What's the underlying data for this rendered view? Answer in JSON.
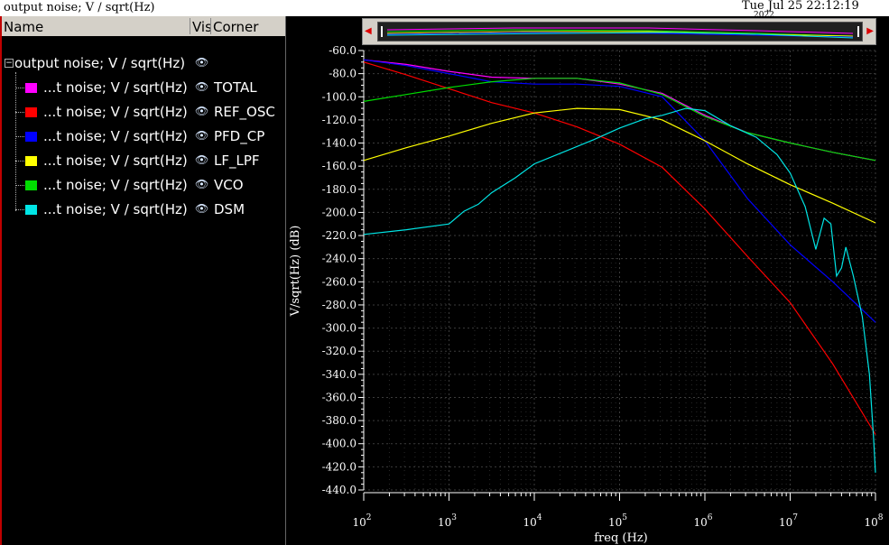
{
  "window": {
    "title": "output noise; V / sqrt(Hz)",
    "datetime": "Tue Jul 25 22:12:19",
    "year": "2022"
  },
  "legend_panel": {
    "columns": [
      "Name",
      "Vis",
      "Corner"
    ],
    "group": "output noise; V / sqrt(Hz)",
    "items": [
      {
        "label": "...t noise; V / sqrt(Hz)",
        "corner": "TOTAL",
        "color": "#ff00ff"
      },
      {
        "label": "...t noise; V / sqrt(Hz)",
        "corner": "REF_OSC",
        "color": "#ff0000"
      },
      {
        "label": "...t noise; V / sqrt(Hz)",
        "corner": "PFD_CP",
        "color": "#0000ff"
      },
      {
        "label": "...t noise; V / sqrt(Hz)",
        "corner": "LF_LPF",
        "color": "#ffff00"
      },
      {
        "label": "...t noise; V / sqrt(Hz)",
        "corner": "VCO",
        "color": "#00dd00"
      },
      {
        "label": "...t noise; V / sqrt(Hz)",
        "corner": "DSM",
        "color": "#00e5e5"
      }
    ]
  },
  "chart_data": {
    "type": "line",
    "xlabel": "freq (Hz)",
    "ylabel": "V/sqrt(Hz) (dB)",
    "xscale": "log",
    "xlim": [
      100,
      100000000
    ],
    "ylim": [
      -440,
      -60
    ],
    "yticks": [
      -60,
      -80,
      -100,
      -120,
      -140,
      -160,
      -180,
      -200,
      -220,
      -240,
      -260,
      -280,
      -300,
      -320,
      -340,
      -360,
      -380,
      -400,
      -420,
      -440
    ],
    "ytick_labels": [
      "-60.0",
      "-80.0",
      "-100.0",
      "-120.0",
      "-140.0",
      "-160.0",
      "-180.0",
      "-200.0",
      "-220.0",
      "-240.0",
      "-260.0",
      "-280.0",
      "-300.0",
      "-320.0",
      "-340.0",
      "-360.0",
      "-380.0",
      "-400.0",
      "-420.0",
      "-440.0"
    ],
    "xticks": [
      100,
      1000,
      10000,
      100000,
      1000000,
      10000000,
      100000000
    ],
    "xtick_labels": [
      [
        "10",
        "2"
      ],
      [
        "10",
        "3"
      ],
      [
        "10",
        "4"
      ],
      [
        "10",
        "5"
      ],
      [
        "10",
        "6"
      ],
      [
        "10",
        "7"
      ],
      [
        "10",
        "8"
      ]
    ],
    "grid": true,
    "series": [
      {
        "name": "TOTAL",
        "color": "#ff00ff",
        "x": [
          100,
          316,
          1000,
          3160,
          10000,
          31600,
          100000,
          316000,
          1000000,
          3160000,
          10000000,
          31600000,
          100000000
        ],
        "y": [
          -68,
          -72,
          -78,
          -83,
          -84,
          -84,
          -89,
          -97,
          -116,
          -131,
          -140,
          -148,
          -155
        ]
      },
      {
        "name": "REF_OSC",
        "color": "#ff0000",
        "x": [
          100,
          316,
          1000,
          3160,
          10000,
          31600,
          100000,
          316000,
          1000000,
          3160000,
          10000000,
          31600000,
          100000000
        ],
        "y": [
          -70,
          -81,
          -93,
          -105,
          -114,
          -126,
          -141,
          -161,
          -197,
          -238,
          -278,
          -331,
          -392
        ]
      },
      {
        "name": "PFD_CP",
        "color": "#0000ff",
        "x": [
          100,
          316,
          1000,
          3160,
          10000,
          31600,
          100000,
          316000,
          1000000,
          3160000,
          10000000,
          31600000,
          100000000
        ],
        "y": [
          -68,
          -73,
          -80,
          -87,
          -89,
          -89,
          -91,
          -100,
          -138,
          -188,
          -228,
          -260,
          -295
        ]
      },
      {
        "name": "LF_LPF",
        "color": "#ffff00",
        "x": [
          100,
          316,
          1000,
          3160,
          10000,
          31600,
          100000,
          316000,
          1000000,
          3160000,
          10000000,
          31600000,
          100000000
        ],
        "y": [
          -155,
          -144,
          -134,
          -123,
          -114,
          -110,
          -111,
          -120,
          -138,
          -158,
          -176,
          -192,
          -209
        ]
      },
      {
        "name": "VCO",
        "color": "#00dd00",
        "x": [
          100,
          316,
          1000,
          3160,
          10000,
          31600,
          100000,
          316000,
          1000000,
          3160000,
          10000000,
          31600000,
          100000000
        ],
        "y": [
          -104,
          -98,
          -92,
          -87,
          -84,
          -84,
          -88,
          -98,
          -117,
          -131,
          -140,
          -148,
          -155
        ]
      },
      {
        "name": "DSM",
        "color": "#00e5e5",
        "x": [
          100,
          316,
          1000,
          1500,
          2200,
          3160,
          6000,
          10000,
          20000,
          50000,
          100000,
          200000,
          316000,
          600000,
          1000000,
          2000000,
          4000000,
          7000000,
          10000000,
          15000000,
          20000000,
          25000000,
          30000000,
          35000000,
          40000000,
          45000000,
          55000000,
          70000000,
          85000000,
          95000000,
          100000000
        ],
        "y": [
          -219,
          -215,
          -210,
          -199,
          -193,
          -183,
          -170,
          -158,
          -149,
          -137,
          -127,
          -119,
          -116,
          -110,
          -112,
          -125,
          -135,
          -150,
          -166,
          -195,
          -232,
          -205,
          -210,
          -255,
          -248,
          -230,
          -255,
          -290,
          -340,
          -395,
          -425
        ]
      }
    ]
  }
}
